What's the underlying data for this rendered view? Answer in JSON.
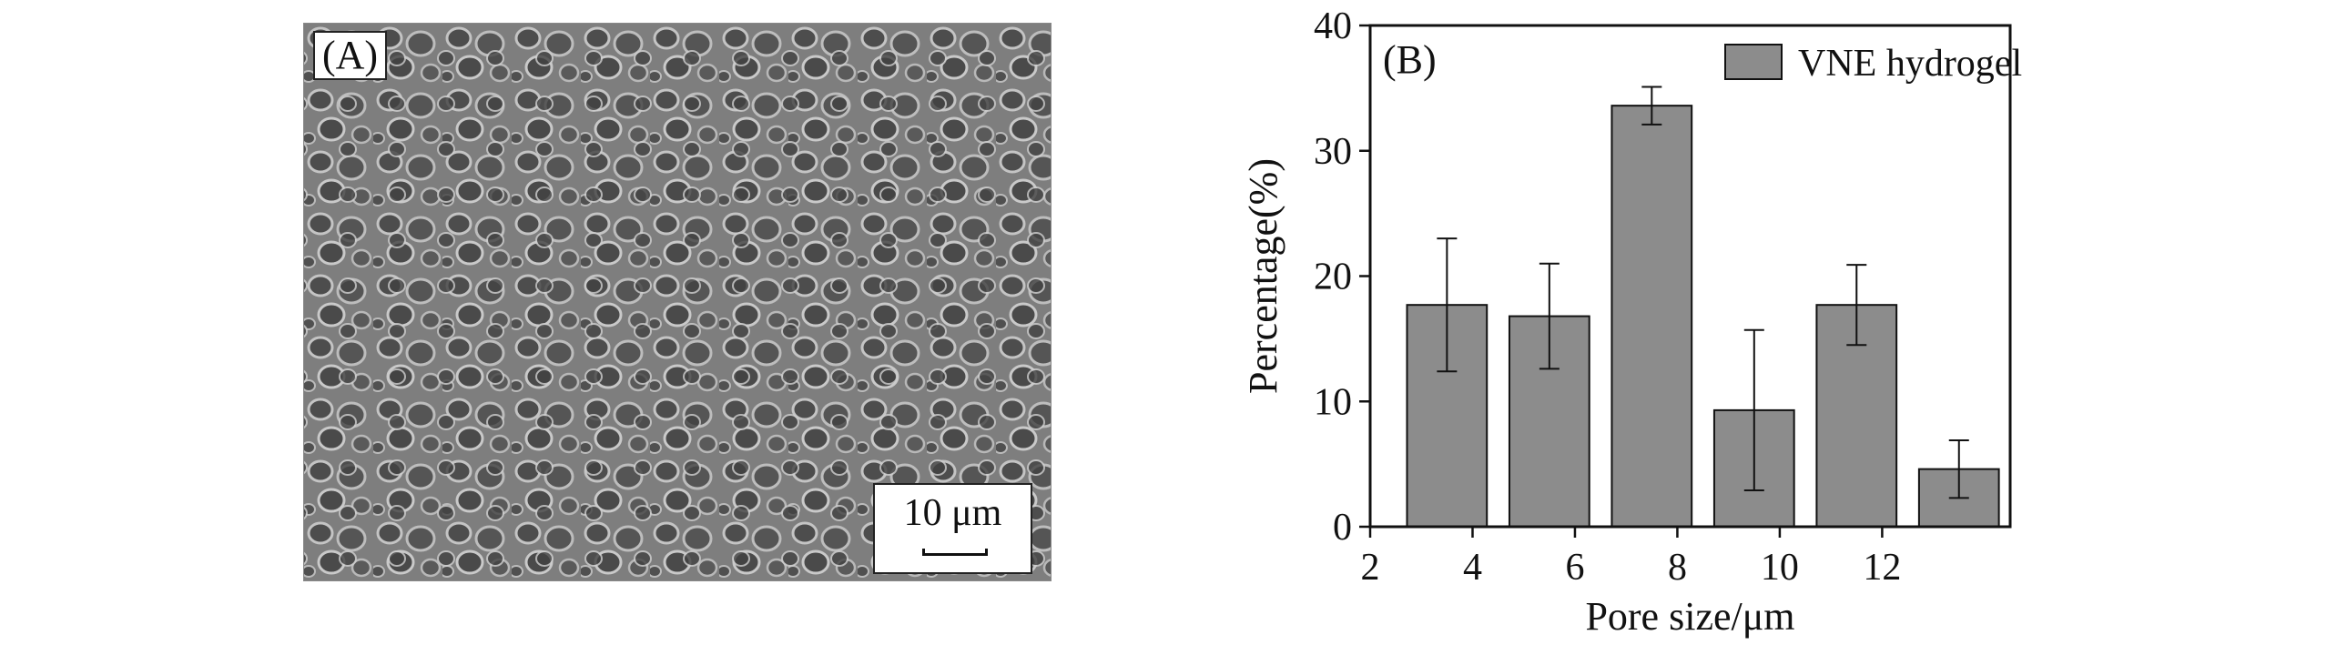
{
  "panel_a": {
    "label": "(A)",
    "scale_bar": "10 μm"
  },
  "chart_data": {
    "type": "bar",
    "panel_label": "(B)",
    "x": [
      3.5,
      5.5,
      7.5,
      9.5,
      11.5,
      13.5
    ],
    "values": [
      17.7,
      16.8,
      33.6,
      9.3,
      17.7,
      4.6
    ],
    "errors": [
      5.3,
      4.2,
      1.5,
      6.4,
      3.2,
      2.3
    ],
    "series": [
      {
        "name": "VNE hydrogel",
        "color": "#8c8c8c"
      }
    ],
    "xlabel": "Pore size/μm",
    "ylabel": "Percentage(%)",
    "xlim": [
      2,
      14.5
    ],
    "ylim": [
      0,
      40
    ],
    "xticks": [
      2,
      4,
      6,
      8,
      10,
      12
    ],
    "yticks": [
      0,
      10,
      20,
      30,
      40
    ],
    "legend_position": "top-right",
    "grid": false
  }
}
